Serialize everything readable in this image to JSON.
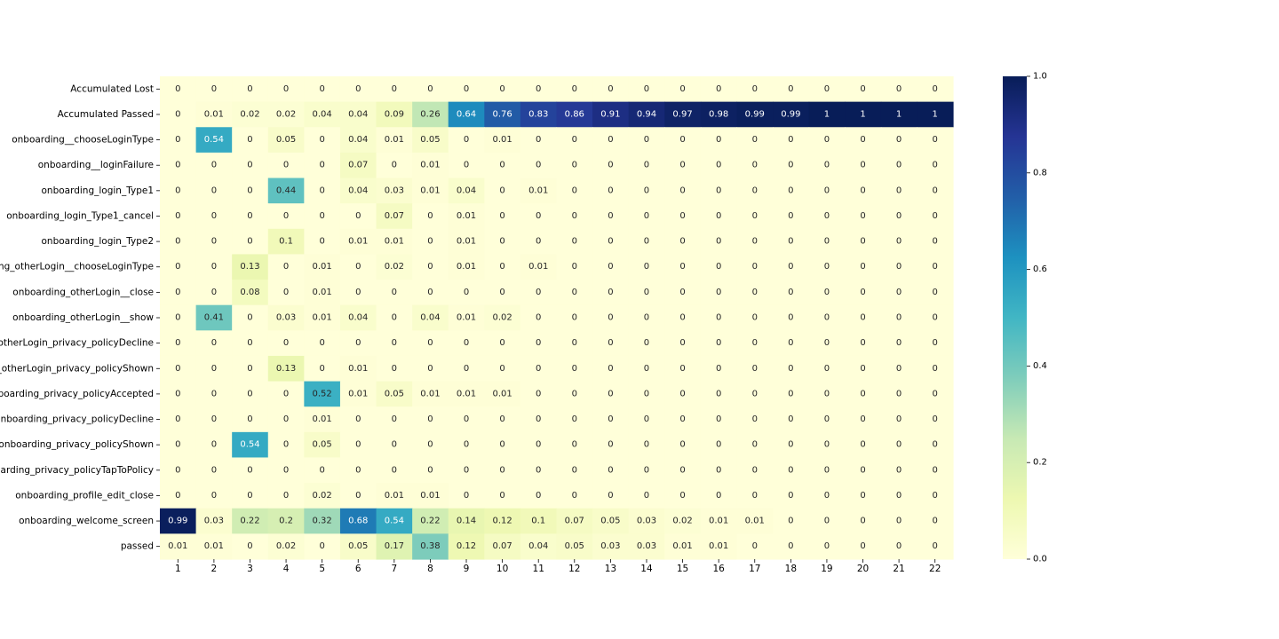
{
  "chart_data": {
    "type": "heatmap",
    "title": "",
    "xlabel": "",
    "ylabel": "",
    "x_categories": [
      "1",
      "2",
      "3",
      "4",
      "5",
      "6",
      "7",
      "8",
      "9",
      "10",
      "11",
      "12",
      "13",
      "14",
      "15",
      "16",
      "17",
      "18",
      "19",
      "20",
      "21",
      "22"
    ],
    "y_categories": [
      "Accumulated Lost",
      "Accumulated Passed",
      "onboarding__chooseLoginType",
      "onboarding__loginFailure",
      "onboarding_login_Type1",
      "onboarding_login_Type1_cancel",
      "onboarding_login_Type2",
      "ling_otherLogin__chooseLoginType",
      "onboarding_otherLogin__close",
      "onboarding_otherLogin__show",
      "_otherLogin_privacy_policyDecline",
      "g_otherLogin_privacy_policyShown",
      "nboarding_privacy_policyAccepted",
      "onboarding_privacy_policyDecline",
      "onboarding_privacy_policyShown",
      "oarding_privacy_policyTapToPolicy",
      "onboarding_profile_edit_close",
      "onboarding_welcome_screen",
      "passed"
    ],
    "values": [
      [
        0,
        0,
        0,
        0,
        0,
        0,
        0,
        0,
        0,
        0,
        0,
        0,
        0,
        0,
        0,
        0,
        0,
        0,
        0,
        0,
        0,
        0
      ],
      [
        0,
        0.01,
        0.02,
        0.02,
        0.04,
        0.04,
        0.09,
        0.26,
        0.64,
        0.76,
        0.83,
        0.86,
        0.91,
        0.94,
        0.97,
        0.98,
        0.99,
        0.99,
        1,
        1,
        1,
        1
      ],
      [
        0,
        0.54,
        0,
        0.05,
        0,
        0.04,
        0.01,
        0.05,
        0,
        0.01,
        0,
        0,
        0,
        0,
        0,
        0,
        0,
        0,
        0,
        0,
        0,
        0
      ],
      [
        0,
        0,
        0,
        0,
        0,
        0.07,
        0,
        0.01,
        0,
        0,
        0,
        0,
        0,
        0,
        0,
        0,
        0,
        0,
        0,
        0,
        0,
        0
      ],
      [
        0,
        0,
        0,
        0.44,
        0,
        0.04,
        0.03,
        0.01,
        0.04,
        0,
        0.01,
        0,
        0,
        0,
        0,
        0,
        0,
        0,
        0,
        0,
        0,
        0
      ],
      [
        0,
        0,
        0,
        0,
        0,
        0,
        0.07,
        0,
        0.01,
        0,
        0,
        0,
        0,
        0,
        0,
        0,
        0,
        0,
        0,
        0,
        0,
        0
      ],
      [
        0,
        0,
        0,
        0.1,
        0,
        0.01,
        0.01,
        0,
        0.01,
        0,
        0,
        0,
        0,
        0,
        0,
        0,
        0,
        0,
        0,
        0,
        0,
        0
      ],
      [
        0,
        0,
        0.13,
        0,
        0.01,
        0,
        0.02,
        0,
        0.01,
        0,
        0.01,
        0,
        0,
        0,
        0,
        0,
        0,
        0,
        0,
        0,
        0,
        0
      ],
      [
        0,
        0,
        0.08,
        0,
        0.01,
        0,
        0,
        0,
        0,
        0,
        0,
        0,
        0,
        0,
        0,
        0,
        0,
        0,
        0,
        0,
        0,
        0
      ],
      [
        0,
        0.41,
        0,
        0.03,
        0.01,
        0.04,
        0,
        0.04,
        0.01,
        0.02,
        0,
        0,
        0,
        0,
        0,
        0,
        0,
        0,
        0,
        0,
        0,
        0
      ],
      [
        0,
        0,
        0,
        0,
        0,
        0,
        0,
        0,
        0,
        0,
        0,
        0,
        0,
        0,
        0,
        0,
        0,
        0,
        0,
        0,
        0,
        0
      ],
      [
        0,
        0,
        0,
        0.13,
        0,
        0.01,
        0,
        0,
        0,
        0,
        0,
        0,
        0,
        0,
        0,
        0,
        0,
        0,
        0,
        0,
        0,
        0
      ],
      [
        0,
        0,
        0,
        0,
        0.52,
        0.01,
        0.05,
        0.01,
        0.01,
        0.01,
        0,
        0,
        0,
        0,
        0,
        0,
        0,
        0,
        0,
        0,
        0,
        0
      ],
      [
        0,
        0,
        0,
        0,
        0.01,
        0,
        0,
        0,
        0,
        0,
        0,
        0,
        0,
        0,
        0,
        0,
        0,
        0,
        0,
        0,
        0,
        0
      ],
      [
        0,
        0,
        0.54,
        0,
        0.05,
        0,
        0,
        0,
        0,
        0,
        0,
        0,
        0,
        0,
        0,
        0,
        0,
        0,
        0,
        0,
        0,
        0
      ],
      [
        0,
        0,
        0,
        0,
        0,
        0,
        0,
        0,
        0,
        0,
        0,
        0,
        0,
        0,
        0,
        0,
        0,
        0,
        0,
        0,
        0,
        0
      ],
      [
        0,
        0,
        0,
        0,
        0.02,
        0,
        0.01,
        0.01,
        0,
        0,
        0,
        0,
        0,
        0,
        0,
        0,
        0,
        0,
        0,
        0,
        0,
        0
      ],
      [
        0.99,
        0.03,
        0.22,
        0.2,
        0.32,
        0.68,
        0.54,
        0.22,
        0.14,
        0.12,
        0.1,
        0.07,
        0.05,
        0.03,
        0.02,
        0.01,
        0.01,
        0,
        0,
        0,
        0,
        0
      ],
      [
        0.01,
        0.01,
        0,
        0.02,
        0,
        0.05,
        0.17,
        0.38,
        0.12,
        0.07,
        0.04,
        0.05,
        0.03,
        0.03,
        0.01,
        0.01,
        0,
        0,
        0,
        0,
        0,
        0
      ]
    ],
    "colorbar": {
      "colormap": "YlGnBu",
      "range": [
        0.0,
        1.0
      ],
      "ticks": [
        "0.0",
        "0.2",
        "0.4",
        "0.6",
        "0.8",
        "1.0"
      ]
    },
    "annotated": true,
    "grid": false,
    "legend": "colorbar-right"
  }
}
